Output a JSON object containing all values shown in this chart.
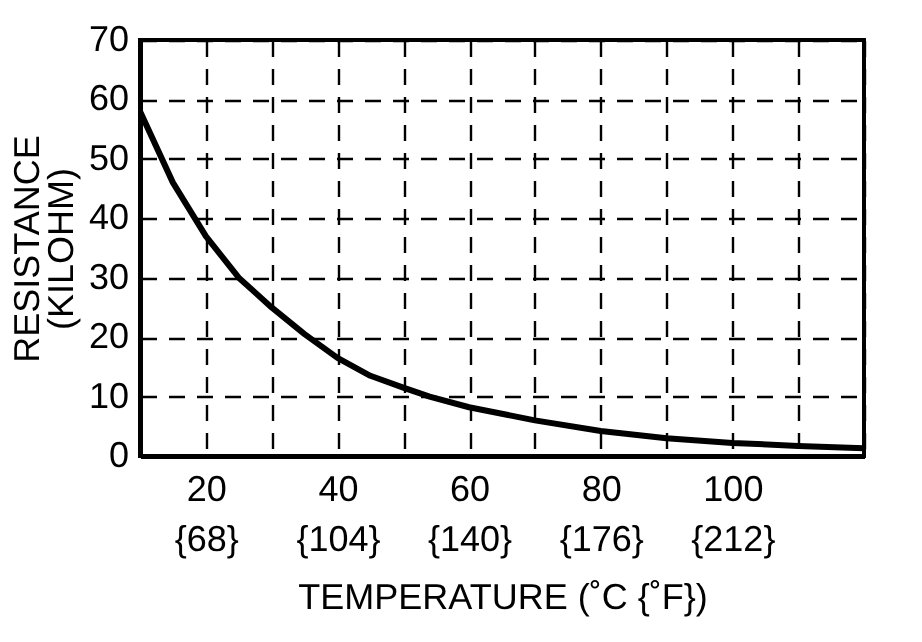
{
  "chart_data": {
    "type": "line",
    "xlabel": "TEMPERATURE (˚C {˚F})",
    "ylabel": "RESISTANCE\n(KILOHM)",
    "x": [
      10,
      15,
      20,
      25,
      30,
      35,
      40,
      45,
      50,
      54,
      60,
      70,
      80,
      90,
      100,
      110,
      120
    ],
    "series": [
      {
        "color": "#000000",
        "values": [
          58,
          46,
          37,
          30,
          25,
          20.5,
          16.5,
          13.5,
          11.5,
          10,
          8.2,
          6,
          4.2,
          3,
          2.2,
          1.7,
          1.3
        ]
      }
    ],
    "xlim": [
      10,
      120
    ],
    "ylim": [
      0,
      70
    ],
    "xticks": [
      {
        "value": 10,
        "label": null
      },
      20,
      {
        "value": 30,
        "label": null
      },
      40,
      {
        "value": 50,
        "label": null
      },
      60,
      {
        "value": 70,
        "label": null
      },
      80,
      {
        "value": 90,
        "label": null
      },
      100,
      {
        "value": 110,
        "label": null
      },
      {
        "value": 120,
        "label": null
      }
    ],
    "x2lim": [
      50,
      248
    ],
    "x2ticks": [
      {
        "value": 68,
        "label": "{68}"
      },
      {
        "value": 104,
        "label": "{104}"
      },
      {
        "value": 140,
        "label": "{140}"
      },
      {
        "value": 176,
        "label": "{176}"
      },
      {
        "value": 212,
        "label": "{212}"
      }
    ],
    "yticks": [
      0,
      10,
      20,
      30,
      40,
      50,
      60,
      70
    ],
    "grid": true,
    "line_style": "solid",
    "marker": "none"
  }
}
